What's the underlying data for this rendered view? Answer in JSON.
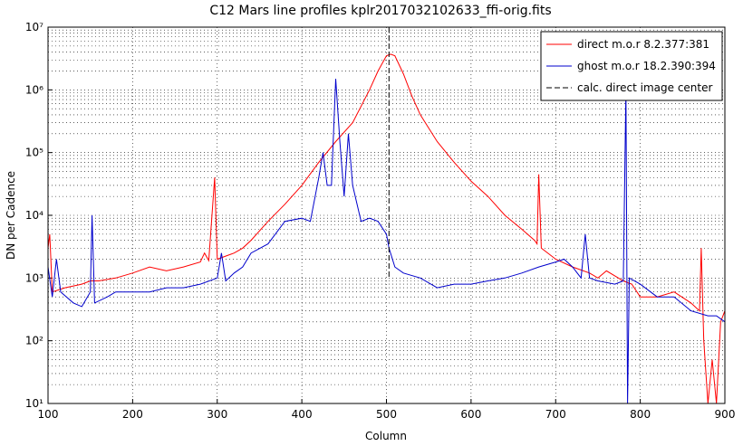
{
  "chart_data": {
    "type": "line",
    "title": "C12 Mars line profiles kplr2017032102633_ffi-orig.fits",
    "xlabel": "Column",
    "ylabel": "DN per Cadence",
    "xlim": [
      100,
      900
    ],
    "ylim": [
      10,
      10000000
    ],
    "yscale": "log",
    "grid": true,
    "xticks": [
      100,
      200,
      300,
      400,
      500,
      600,
      700,
      800,
      900
    ],
    "yticks": [
      {
        "value": 10,
        "label": "10¹"
      },
      {
        "value": 100,
        "label": "10²"
      },
      {
        "value": 1000,
        "label": "10³"
      },
      {
        "value": 10000,
        "label": "10⁴"
      },
      {
        "value": 100000,
        "label": "10⁵"
      },
      {
        "value": 1000000,
        "label": "10⁶"
      },
      {
        "value": 10000000,
        "label": "10⁷"
      }
    ],
    "legend": "upper right",
    "vline": {
      "x": 503,
      "label": "calc. direct image center",
      "color": "#000000"
    },
    "series": [
      {
        "name": "direct m.o.r 8.2.377:381",
        "color": "#ff0000",
        "x": [
          100,
          102,
          105,
          120,
          140,
          150,
          160,
          180,
          200,
          220,
          240,
          260,
          280,
          285,
          290,
          297,
          300,
          320,
          330,
          340,
          360,
          380,
          400,
          420,
          440,
          460,
          480,
          490,
          500,
          505,
          510,
          520,
          530,
          540,
          560,
          580,
          600,
          620,
          640,
          660,
          675,
          678,
          680,
          683,
          700,
          720,
          740,
          750,
          760,
          780,
          790,
          800,
          820,
          840,
          860,
          870,
          872,
          875,
          880,
          885,
          890,
          895,
          900
        ],
        "values": [
          3000,
          5000,
          600,
          700,
          800,
          900,
          900,
          1000,
          1200,
          1500,
          1300,
          1500,
          1800,
          2500,
          1900,
          40000,
          2000,
          2500,
          3000,
          4000,
          8000,
          15000,
          30000,
          70000,
          150000,
          300000,
          1000000,
          2000000,
          3500000,
          3700000,
          3500000,
          1800000,
          800000,
          400000,
          150000,
          70000,
          35000,
          20000,
          10000,
          6000,
          4000,
          3500,
          45000,
          3000,
          2000,
          1500,
          1200,
          1000,
          1300,
          900,
          800,
          500,
          500,
          600,
          400,
          300,
          3000,
          100,
          10,
          50,
          10,
          200,
          300
        ]
      },
      {
        "name": "ghost m.o.r 18.2.390:394",
        "color": "#0000cc",
        "x": [
          100,
          105,
          110,
          115,
          130,
          140,
          150,
          152,
          155,
          170,
          180,
          200,
          220,
          240,
          260,
          280,
          300,
          305,
          310,
          320,
          330,
          340,
          360,
          380,
          400,
          410,
          420,
          425,
          430,
          435,
          440,
          445,
          450,
          455,
          460,
          470,
          480,
          490,
          500,
          503,
          510,
          520,
          540,
          560,
          580,
          600,
          620,
          640,
          660,
          680,
          700,
          710,
          720,
          730,
          735,
          740,
          750,
          770,
          780,
          783,
          785,
          787,
          800,
          820,
          840,
          860,
          880,
          890,
          900
        ],
        "values": [
          1500,
          500,
          2000,
          600,
          400,
          350,
          600,
          10000,
          400,
          500,
          600,
          600,
          600,
          700,
          700,
          800,
          1000,
          2500,
          900,
          1200,
          1500,
          2500,
          3500,
          8000,
          9000,
          8000,
          40000,
          100000,
          30000,
          30000,
          1500000,
          150000,
          20000,
          200000,
          30000,
          8000,
          9000,
          8000,
          5000,
          3000,
          1500,
          1200,
          1000,
          700,
          800,
          800,
          900,
          1000,
          1200,
          1500,
          1800,
          2000,
          1500,
          1000,
          5000,
          1000,
          900,
          800,
          900,
          1000000,
          10,
          1000,
          800,
          500,
          500,
          300,
          250,
          250,
          200
        ]
      }
    ]
  }
}
